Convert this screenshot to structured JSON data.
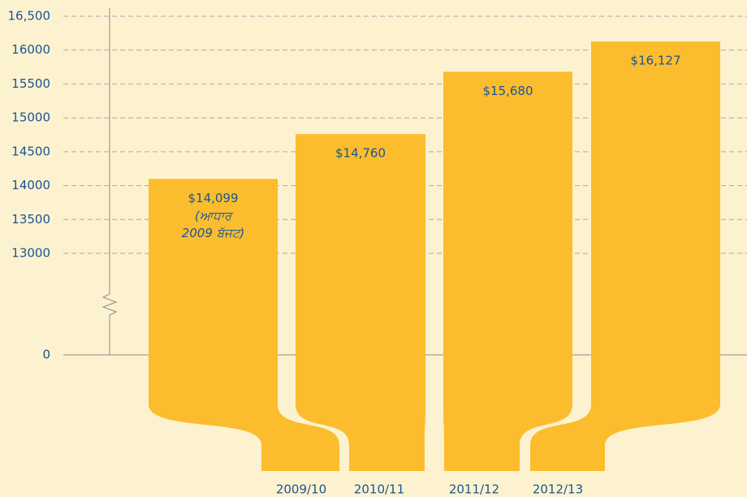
{
  "chart_data": {
    "type": "bar",
    "categories": [
      "2009/10",
      "2010/11",
      "2011/12",
      "2012/13"
    ],
    "values": [
      14099,
      14760,
      15680,
      16127
    ],
    "value_labels": [
      "$14,099",
      "$14,760",
      "$15,680",
      "$16,127"
    ],
    "annotation": [
      "(ਆਧਾਰ",
      "2009 ਬੱਜਟ)"
    ],
    "color": "#fbbd2e",
    "ylim": [
      0,
      16500
    ],
    "yticks": [
      0,
      13000,
      13500,
      14000,
      14500,
      15000,
      15500,
      16000,
      {
        "value": 16500,
        "label": "16,500"
      }
    ],
    "axis_break": true,
    "grid": true
  }
}
